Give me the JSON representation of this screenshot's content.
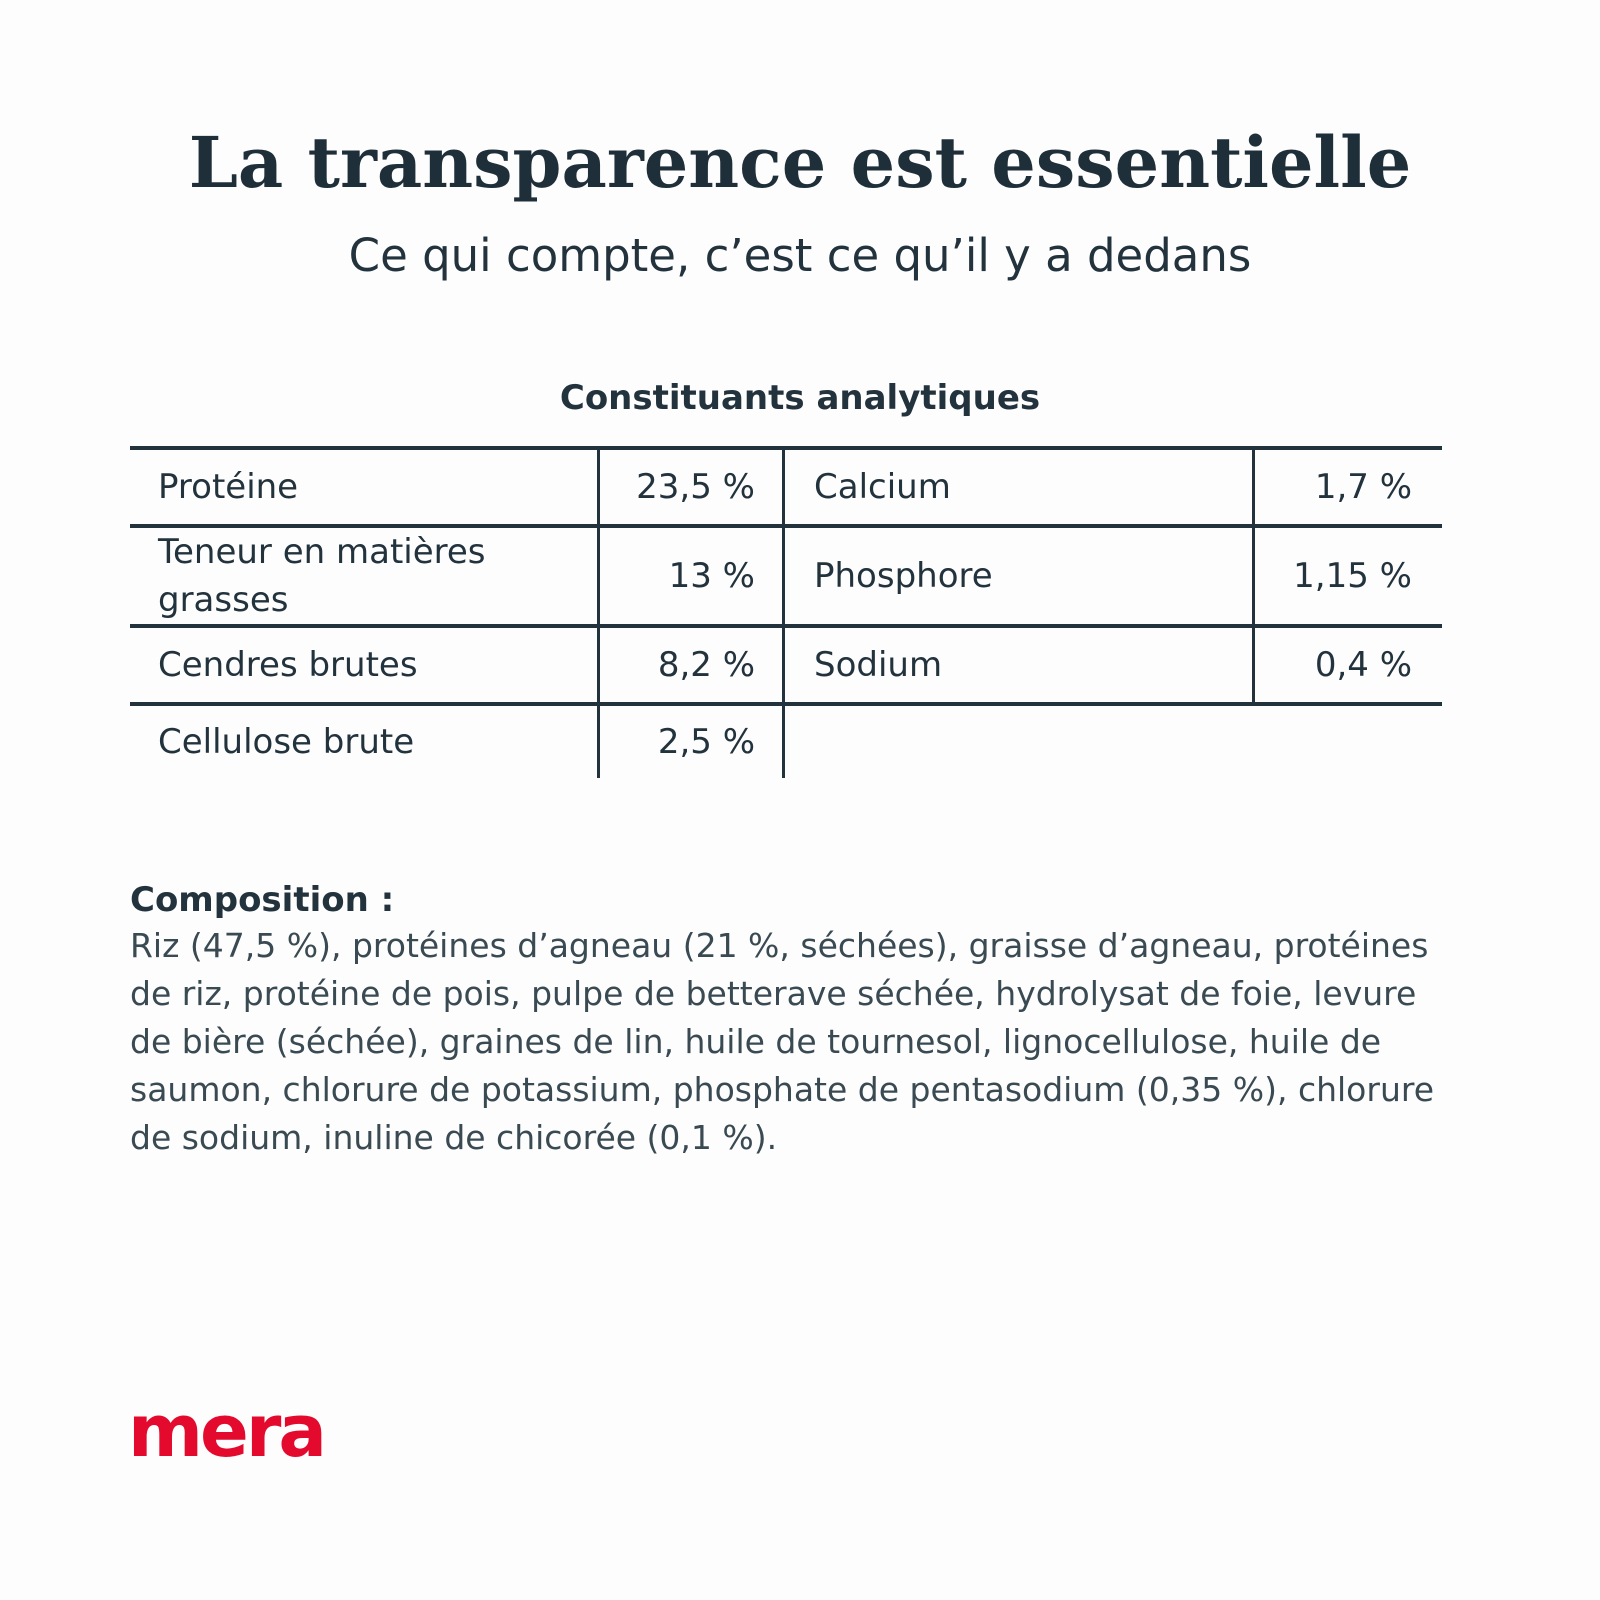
{
  "header": {
    "title": "La transparence est essentielle",
    "subtitle": "Ce qui compte, c’est ce qu’il y a dedans"
  },
  "table": {
    "title": "Constituants analytiques",
    "left": [
      {
        "label": "Protéine",
        "value": "23,5 %"
      },
      {
        "label": "Teneur en matières grasses",
        "value": "13 %"
      },
      {
        "label": "Cendres brutes",
        "value": "8,2 %"
      },
      {
        "label": "Cellulose brute",
        "value": "2,5 %"
      }
    ],
    "right": [
      {
        "label": "Calcium",
        "value": "1,7 %"
      },
      {
        "label": "Phosphore",
        "value": "1,15 %"
      },
      {
        "label": "Sodium",
        "value": "0,4 %"
      }
    ]
  },
  "composition": {
    "heading": "Composition :",
    "text": "Riz (47,5 %), protéines d’agneau (21 %, séchées), graisse d’agneau, protéines de riz, protéine de pois, pulpe de betterave séchée, hydrolysat de foie, levure de bière (séchée), graines de lin, huile de tournesol, lignocellulose, huile de saumon, chlorure de potassium, phosphate de pentasodium (0,35 %), chlorure de sodium, inuline de chicorée (0,1 %)."
  },
  "brand": {
    "logo_text": "mera",
    "logo_color": "#e30a2d",
    "text_color": "#23333d"
  }
}
